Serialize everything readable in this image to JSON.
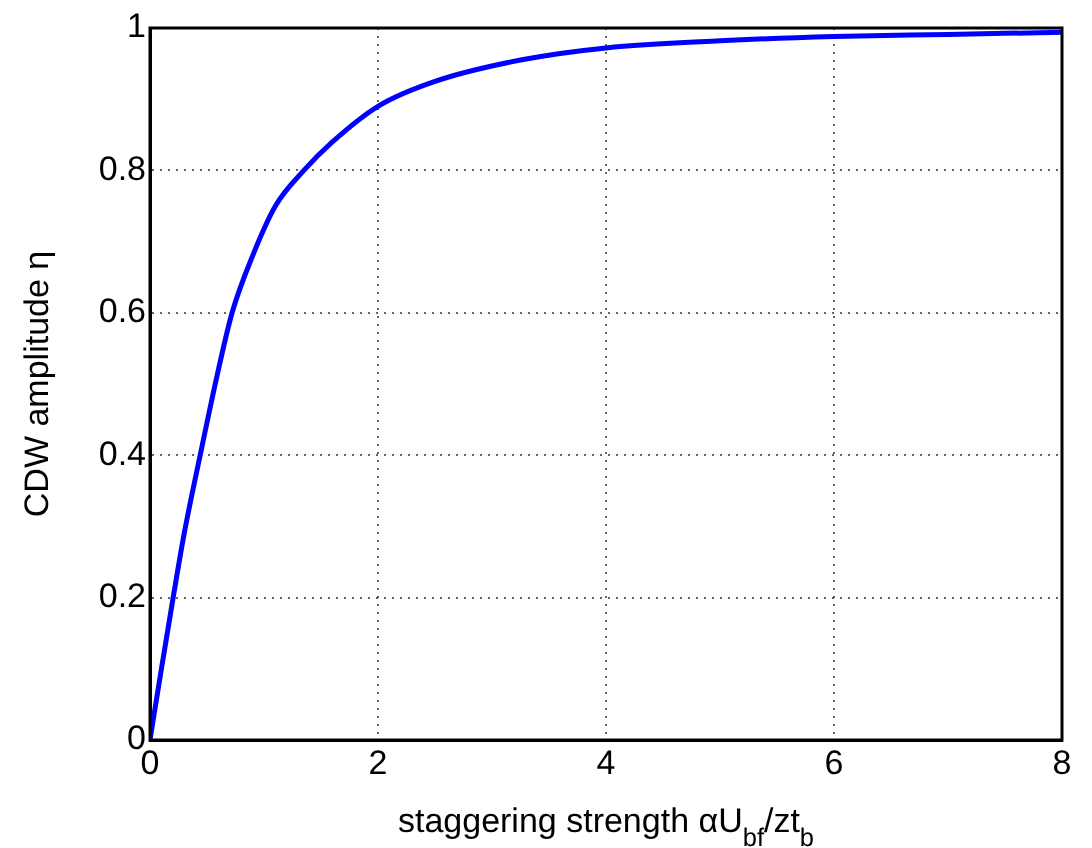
{
  "chart_data": {
    "type": "line",
    "xlabel": "staggering strength αU$_{bf}$/zt$_{b}$",
    "ylabel": "CDW amplitude η",
    "x": [
      0,
      0.1,
      0.2,
      0.3,
      0.44,
      0.6,
      0.72,
      0.9,
      1.1,
      1.35,
      1.6,
      2,
      2.5,
      3.25,
      4,
      5,
      6,
      7,
      8
    ],
    "series": [
      {
        "color": "#0000ff",
        "values": [
          0,
          0.1,
          0.197,
          0.29,
          0.4,
          0.52,
          0.6,
          0.68,
          0.75,
          0.8,
          0.84,
          0.89,
          0.925,
          0.955,
          0.972,
          0.982,
          0.988,
          0.991,
          0.994
        ]
      }
    ],
    "xlim": [
      0,
      8
    ],
    "xticks": [
      0,
      2,
      4,
      6,
      8
    ],
    "ylim": [
      0,
      1
    ],
    "yticks": [
      0,
      0.2,
      0.4,
      0.6,
      0.8,
      1
    ],
    "grid": true,
    "marker": "none",
    "line_style": "solid"
  }
}
